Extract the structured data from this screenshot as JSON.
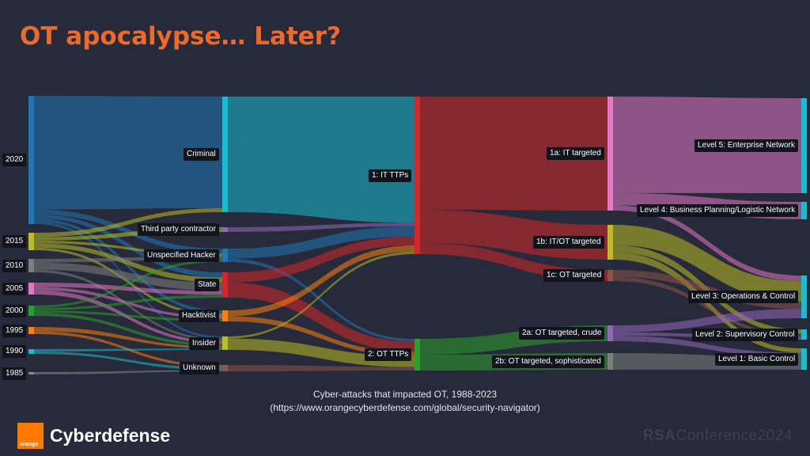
{
  "title": "OT apocalypse… Later?",
  "caption_line1": "Cyber-attacks that impacted OT, 1988-2023",
  "caption_line2": "(https://www.orangecyberdefense.com/global/security-navigator)",
  "brand": {
    "box_text": "orange",
    "name": "Cyberdefense"
  },
  "footer": {
    "bold": "RSA",
    "rest": "Conference2024"
  },
  "sankey": {
    "nodes": [
      {
        "id": "y2020",
        "label": "2020",
        "color": "#1f77b4"
      },
      {
        "id": "y2015",
        "label": "2015",
        "color": "#bcbd22"
      },
      {
        "id": "y2010",
        "label": "2010",
        "color": "#7f7f7f"
      },
      {
        "id": "y2005",
        "label": "2005",
        "color": "#e377c2"
      },
      {
        "id": "y2000",
        "label": "2000",
        "color": "#2ca02c"
      },
      {
        "id": "y1995",
        "label": "1995",
        "color": "#ff7f0e"
      },
      {
        "id": "y1990",
        "label": "1990",
        "color": "#17becf"
      },
      {
        "id": "y1985",
        "label": "1985",
        "color": "#8c8c8c"
      },
      {
        "id": "criminal",
        "label": "Criminal",
        "color": "#17becf"
      },
      {
        "id": "third",
        "label": "Third party contractor",
        "color": "#9467bd"
      },
      {
        "id": "unspec",
        "label": "Unspecified Hacker",
        "color": "#1f77b4"
      },
      {
        "id": "state",
        "label": "State",
        "color": "#d62728"
      },
      {
        "id": "hacktivist",
        "label": "Hacktivist",
        "color": "#ff7f0e"
      },
      {
        "id": "insider",
        "label": "Insider",
        "color": "#bcbd22"
      },
      {
        "id": "unknown",
        "label": "Unknown",
        "color": "#8c564b"
      },
      {
        "id": "it_ttps",
        "label": "1: IT TTPs",
        "color": "#d62728"
      },
      {
        "id": "ot_ttps",
        "label": "2: OT TTPs",
        "color": "#2ca02c"
      },
      {
        "id": "t1a",
        "label": "1a: IT targeted",
        "color": "#e377c2"
      },
      {
        "id": "t1b",
        "label": "1b: IT/OT targeted",
        "color": "#bcbd22"
      },
      {
        "id": "t1c",
        "label": "1c: OT targeted",
        "color": "#8c564b"
      },
      {
        "id": "t2a",
        "label": "2a: OT targeted, crude",
        "color": "#9467bd"
      },
      {
        "id": "t2b",
        "label": "2b: OT targeted, sophisticated",
        "color": "#7f7f7f"
      },
      {
        "id": "l5",
        "label": "Level 5: Enterprise Network",
        "color": "#17becf"
      },
      {
        "id": "l4",
        "label": "Level 4: Business Planning/Logistic Network",
        "color": "#17becf"
      },
      {
        "id": "l3",
        "label": "Level 3: Operations & Control",
        "color": "#17becf"
      },
      {
        "id": "l2",
        "label": "Level 2: Supervisory Control",
        "color": "#17becf"
      },
      {
        "id": "l1",
        "label": "Level 1: Basic Control",
        "color": "#17becf"
      }
    ],
    "links": [
      {
        "s": "y2020",
        "t": "criminal",
        "v": 140
      },
      {
        "s": "y2020",
        "t": "unspec",
        "v": 6
      },
      {
        "s": "y2020",
        "t": "state",
        "v": 5
      },
      {
        "s": "y2020",
        "t": "hacktivist",
        "v": 4
      },
      {
        "s": "y2020",
        "t": "insider",
        "v": 3
      },
      {
        "s": "y2015",
        "t": "criminal",
        "v": 5
      },
      {
        "s": "y2015",
        "t": "third",
        "v": 4
      },
      {
        "s": "y2015",
        "t": "unspec",
        "v": 3
      },
      {
        "s": "y2015",
        "t": "state",
        "v": 5
      },
      {
        "s": "y2015",
        "t": "hacktivist",
        "v": 3
      },
      {
        "s": "y2010",
        "t": "unspec",
        "v": 4
      },
      {
        "s": "y2010",
        "t": "state",
        "v": 8
      },
      {
        "s": "y2010",
        "t": "insider",
        "v": 3
      },
      {
        "s": "y2005",
        "t": "state",
        "v": 4
      },
      {
        "s": "y2005",
        "t": "hacktivist",
        "v": 3
      },
      {
        "s": "y2005",
        "t": "insider",
        "v": 4
      },
      {
        "s": "y2000",
        "t": "unspec",
        "v": 3
      },
      {
        "s": "y2000",
        "t": "state",
        "v": 3
      },
      {
        "s": "y2000",
        "t": "hacktivist",
        "v": 3
      },
      {
        "s": "y2000",
        "t": "insider",
        "v": 4
      },
      {
        "s": "y1995",
        "t": "insider",
        "v": 3
      },
      {
        "s": "y1995",
        "t": "unknown",
        "v": 2
      },
      {
        "s": "y1990",
        "t": "insider",
        "v": 2
      },
      {
        "s": "y1990",
        "t": "unknown",
        "v": 2
      },
      {
        "s": "y1985",
        "t": "unknown",
        "v": 1
      },
      {
        "s": "criminal",
        "t": "it_ttps",
        "v": 145
      },
      {
        "s": "third",
        "t": "it_ttps",
        "v": 4
      },
      {
        "s": "unspec",
        "t": "it_ttps",
        "v": 12
      },
      {
        "s": "unspec",
        "t": "ot_ttps",
        "v": 4
      },
      {
        "s": "state",
        "t": "it_ttps",
        "v": 10
      },
      {
        "s": "state",
        "t": "ot_ttps",
        "v": 15
      },
      {
        "s": "hacktivist",
        "t": "it_ttps",
        "v": 7
      },
      {
        "s": "hacktivist",
        "t": "ot_ttps",
        "v": 6
      },
      {
        "s": "insider",
        "t": "it_ttps",
        "v": 3
      },
      {
        "s": "insider",
        "t": "ot_ttps",
        "v": 16
      },
      {
        "s": "unknown",
        "t": "ot_ttps",
        "v": 5
      },
      {
        "s": "it_ttps",
        "t": "t1a",
        "v": 130
      },
      {
        "s": "it_ttps",
        "t": "t1b",
        "v": 38
      },
      {
        "s": "it_ttps",
        "t": "t1c",
        "v": 13
      },
      {
        "s": "ot_ttps",
        "t": "t2a",
        "v": 23
      },
      {
        "s": "ot_ttps",
        "t": "t2b",
        "v": 23
      },
      {
        "s": "t1a",
        "t": "l5",
        "v": 110
      },
      {
        "s": "t1a",
        "t": "l4",
        "v": 14
      },
      {
        "s": "t1a",
        "t": "l3",
        "v": 6
      },
      {
        "s": "t1b",
        "t": "l3",
        "v": 22
      },
      {
        "s": "t1b",
        "t": "l2",
        "v": 8
      },
      {
        "s": "t1b",
        "t": "l1",
        "v": 8
      },
      {
        "s": "t1c",
        "t": "l3",
        "v": 8
      },
      {
        "s": "t1c",
        "t": "l2",
        "v": 5
      },
      {
        "s": "t2a",
        "t": "l3",
        "v": 10
      },
      {
        "s": "t2a",
        "t": "l2",
        "v": 5
      },
      {
        "s": "t2a",
        "t": "l1",
        "v": 8
      },
      {
        "s": "t2b",
        "t": "l1",
        "v": 23
      }
    ]
  }
}
